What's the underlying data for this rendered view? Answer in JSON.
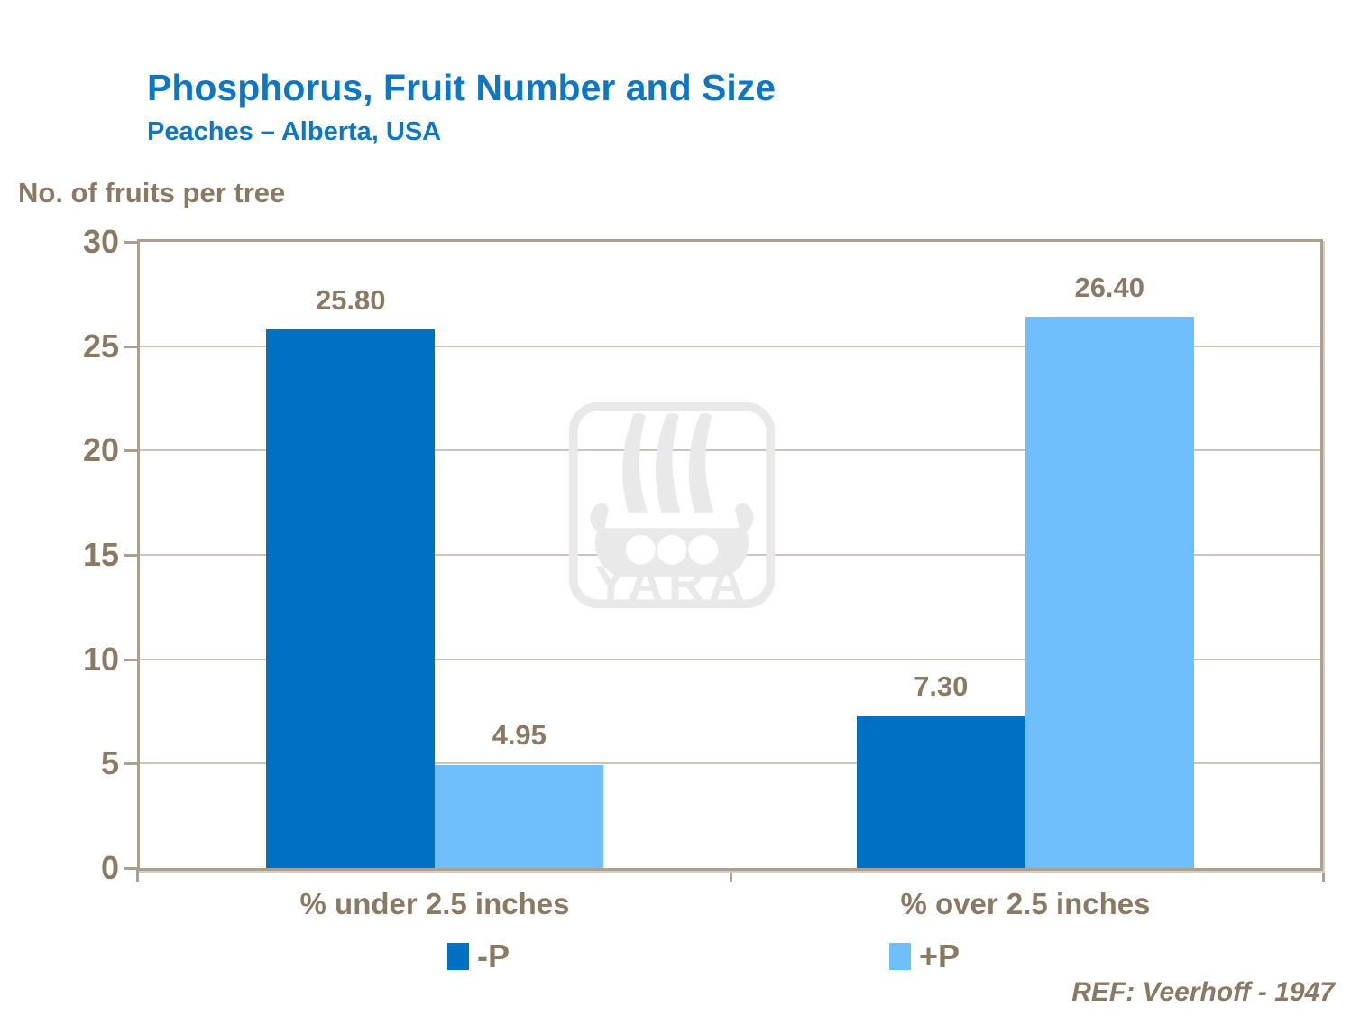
{
  "header": {
    "title": "Phosphorus, Fruit Number and Size",
    "subtitle": "Peaches  – Alberta,  USA"
  },
  "axis_header": "No. of fruits per tree",
  "watermark": {
    "name": "yara-logo",
    "text": "YARA"
  },
  "footer": {
    "ref": "REF: Veerhoff - 1947"
  },
  "colors": {
    "title_blue": "#0e76c2",
    "text_brown": "#8a7a64",
    "frame_tan": "#ab9f8f",
    "gridline_tan": "#cdc4b6",
    "bar_dark_blue": "#0070c2",
    "bar_light_blue": "#6fbffc",
    "watermark_gray": "#e9e9e9"
  },
  "chart_data": {
    "type": "bar",
    "title": "Phosphorus, Fruit Number and Size",
    "subtitle": "Peaches – Alberta, USA",
    "ylabel": "No. of fruits per tree",
    "xlabel": "",
    "categories": [
      "% under 2.5 inches",
      "% over 2.5 inches"
    ],
    "series": [
      {
        "name": "-P",
        "color": "#0070c2",
        "values": [
          25.8,
          7.3
        ]
      },
      {
        "name": "+P",
        "color": "#6fbffc",
        "values": [
          4.95,
          26.4
        ]
      }
    ],
    "value_labels": [
      [
        "25.80",
        "7.30"
      ],
      [
        "4.95",
        "26.40"
      ]
    ],
    "ylim": [
      0,
      30
    ],
    "yticks": [
      0,
      5,
      10,
      15,
      20,
      25,
      30
    ],
    "grid": "horizontal",
    "legend_position": "bottom"
  }
}
